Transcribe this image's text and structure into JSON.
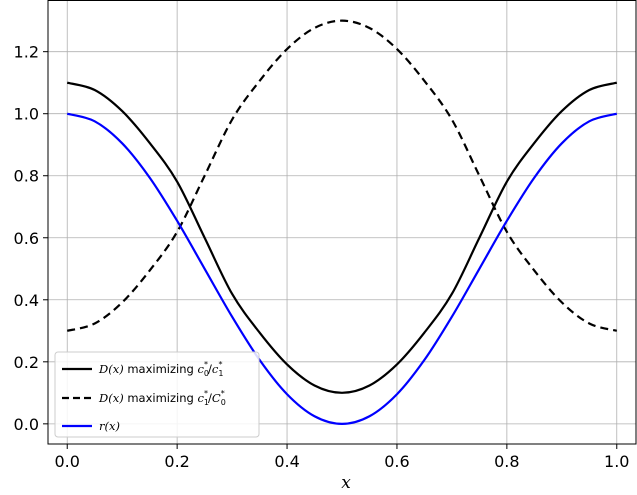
{
  "chart_data": {
    "type": "line",
    "title": "",
    "xlabel": "x",
    "ylabel": "",
    "xlim": [
      -0.035,
      1.035
    ],
    "ylim": [
      -0.065,
      1.365
    ],
    "xticks": [
      0.0,
      0.2,
      0.4,
      0.6,
      0.8,
      1.0
    ],
    "yticks": [
      0.0,
      0.2,
      0.4,
      0.6,
      0.8,
      1.0,
      1.2
    ],
    "xtick_labels": [
      "0.0",
      "0.2",
      "0.4",
      "0.6",
      "0.8",
      "1.0"
    ],
    "ytick_labels": [
      "0.0",
      "0.2",
      "0.4",
      "0.6",
      "0.8",
      "1.0",
      "1.2"
    ],
    "grid": true,
    "legend_position": "lower-left",
    "x": [
      0.0,
      0.05,
      0.1,
      0.15,
      0.2,
      0.25,
      0.3,
      0.35,
      0.4,
      0.45,
      0.5,
      0.55,
      0.6,
      0.65,
      0.7,
      0.75,
      0.8,
      0.85,
      0.9,
      0.95,
      1.0
    ],
    "series": [
      {
        "name": "D(x) maximizing c0*/c1*",
        "color": "#000000",
        "dash": "solid",
        "values": [
          1.1,
          1.0764,
          1.0084,
          0.9057,
          0.7809,
          0.6,
          0.4191,
          0.2943,
          0.1916,
          0.1236,
          0.1,
          0.1236,
          0.1916,
          0.2943,
          0.4191,
          0.6,
          0.7809,
          0.9057,
          1.0084,
          1.0764,
          1.1
        ]
      },
      {
        "name": "D(x) maximizing c1*/C0*",
        "color": "#000000",
        "dash": "dashed",
        "values": [
          0.3,
          0.3236,
          0.3916,
          0.4943,
          0.6191,
          0.8,
          0.9809,
          1.1057,
          1.2084,
          1.2764,
          1.3,
          1.2764,
          1.2084,
          1.1057,
          0.9809,
          0.8,
          0.6191,
          0.4943,
          0.3916,
          0.3236,
          0.3
        ]
      },
      {
        "name": "r(x)",
        "color": "#0000ff",
        "dash": "solid",
        "values": [
          1.0,
          0.9755,
          0.9045,
          0.7939,
          0.6545,
          0.5,
          0.3455,
          0.2061,
          0.0955,
          0.0245,
          0.0,
          0.0245,
          0.0955,
          0.2061,
          0.3455,
          0.5,
          0.6545,
          0.7939,
          0.9045,
          0.9755,
          1.0
        ]
      }
    ]
  },
  "legend": {
    "items": [
      {
        "prefix": "D(x)",
        "text": " maximizing ",
        "math": "c",
        "sub1": "0",
        "sup1": "*",
        "slash": "/",
        "math2": "c",
        "sub2": "1",
        "sup2": "*"
      },
      {
        "prefix": "D(x)",
        "text": " maximizing ",
        "math": "c",
        "sub1": "1",
        "sup1": "*",
        "slash": "/",
        "math2": "C",
        "sub2": "0",
        "sup2": "*"
      },
      {
        "prefix": "r(x)"
      }
    ]
  }
}
